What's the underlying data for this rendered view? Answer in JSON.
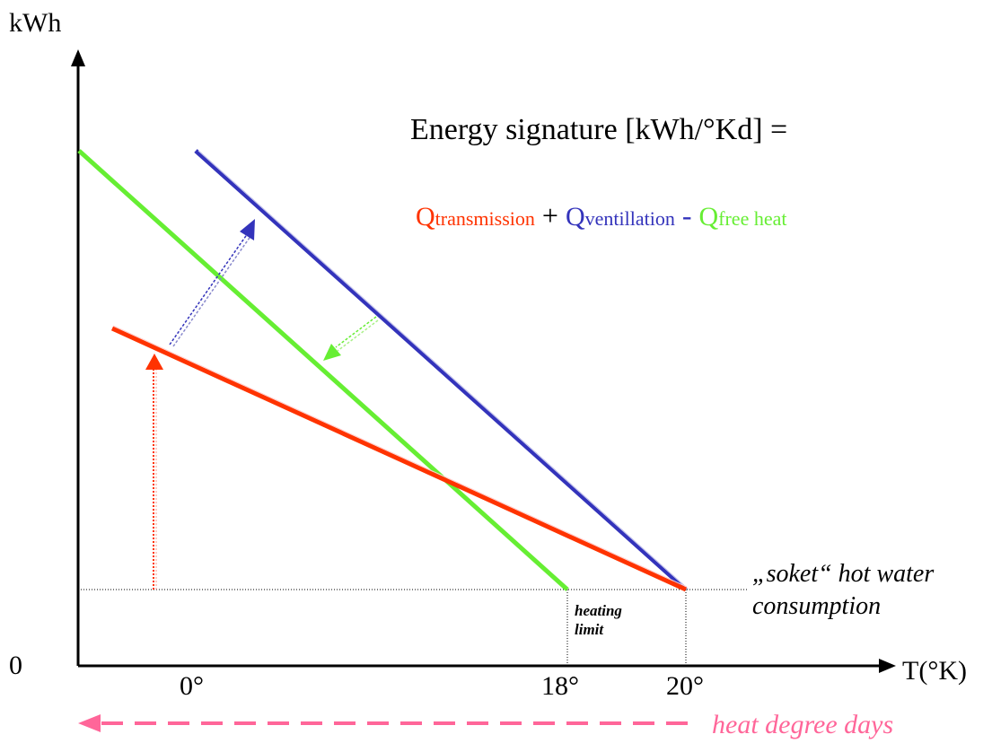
{
  "axes": {
    "y_label": "kWh",
    "x_label": "T(°K)",
    "origin_label": "0"
  },
  "ticks": {
    "t0": "0°",
    "t18": "18°",
    "t20": "20°"
  },
  "formula": {
    "title": "Energy signature [kWh/°Kd] =",
    "transmission_q": "Q",
    "transmission_sub": "transmission",
    "plus": "+",
    "ventillation_q": "Q",
    "ventillation_sub": "ventillation",
    "minus": "-",
    "free_heat_q": "Q",
    "free_heat_sub": "free heat"
  },
  "annotations": {
    "soket_line1": "„soket“ hot water",
    "soket_line2": "consumption",
    "heating_limit_line1": "heating",
    "heating_limit_line2": "limit",
    "heat_degree_days": "heat degree days"
  },
  "colors": {
    "transmission": "#ff3300",
    "ventillation": "#3333bb",
    "free_heat": "#66ee33",
    "heat_degree_days": "#ff6699",
    "axis": "#000000"
  }
}
